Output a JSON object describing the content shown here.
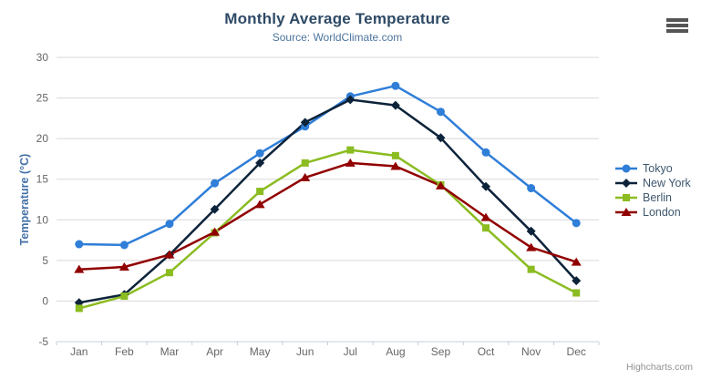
{
  "header": {
    "menu_icon": "hamburger-icon"
  },
  "credits": "Highcharts.com",
  "chart_data": {
    "type": "line",
    "title": "Monthly Average Temperature",
    "subtitle": "Source: WorldClimate.com",
    "xlabel": "",
    "ylabel": "Temperature (°C)",
    "ylim": [
      -5,
      30
    ],
    "yticks": [
      30,
      25,
      20,
      15,
      10,
      5,
      0,
      -5
    ],
    "grid": true,
    "legend_position": "right",
    "categories": [
      "Jan",
      "Feb",
      "Mar",
      "Apr",
      "May",
      "Jun",
      "Jul",
      "Aug",
      "Sep",
      "Oct",
      "Nov",
      "Dec"
    ],
    "series": [
      {
        "name": "Tokyo",
        "color": "#2f7ed8",
        "marker": "circle",
        "values": [
          7.0,
          6.9,
          9.5,
          14.5,
          18.2,
          21.5,
          25.2,
          26.5,
          23.3,
          18.3,
          13.9,
          9.6
        ]
      },
      {
        "name": "New York",
        "color": "#0d233a",
        "marker": "diamond",
        "values": [
          -0.2,
          0.8,
          5.7,
          11.3,
          17.0,
          22.0,
          24.8,
          24.1,
          20.1,
          14.1,
          8.6,
          2.5
        ]
      },
      {
        "name": "Berlin",
        "color": "#8bbc21",
        "marker": "square",
        "values": [
          -0.9,
          0.6,
          3.5,
          8.4,
          13.5,
          17.0,
          18.6,
          17.9,
          14.3,
          9.0,
          3.9,
          1.0
        ]
      },
      {
        "name": "London",
        "color": "#910000",
        "marker": "triangle",
        "values": [
          3.9,
          4.2,
          5.7,
          8.5,
          11.9,
          15.2,
          17.0,
          16.6,
          14.2,
          10.3,
          6.6,
          4.8
        ]
      }
    ],
    "colors": {
      "grid_line": "#d8d8d8",
      "axis_line": "#c0d0e0",
      "tick_label": "#666666",
      "axis_title": "#4572a7",
      "title": "#2e4a66",
      "subtitle": "#4d759e",
      "legend_text": "#3e576f",
      "credits_text": "#909090"
    }
  }
}
